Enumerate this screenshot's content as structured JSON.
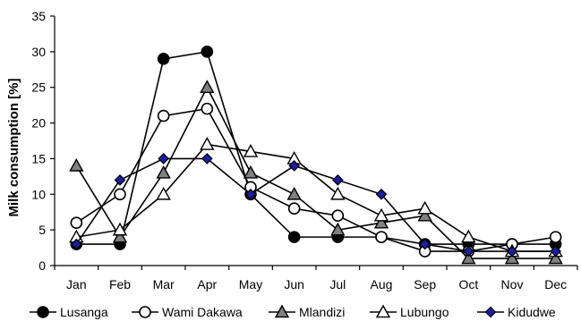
{
  "chart_data": {
    "type": "line",
    "title": "",
    "xlabel": "",
    "ylabel": "Milk consumption [%]",
    "ylim": [
      0,
      35
    ],
    "yticks": [
      0,
      5,
      10,
      15,
      20,
      25,
      30,
      35
    ],
    "categories": [
      "Jan",
      "Feb",
      "Mar",
      "Apr",
      "May",
      "Jun",
      "Jul",
      "Aug",
      "Sep",
      "Oct",
      "Nov",
      "Dec"
    ],
    "grid": false,
    "legend_position": "bottom",
    "series": [
      {
        "name": "Lusanga",
        "marker": "circle",
        "fill": "#000000",
        "values": [
          3,
          3,
          29,
          30,
          10,
          4,
          4,
          4,
          3,
          3,
          3,
          3
        ]
      },
      {
        "name": "Wami Dakawa",
        "marker": "circle",
        "fill": "#ffffff",
        "values": [
          6,
          10,
          21,
          22,
          11,
          8,
          7,
          4,
          2,
          2,
          3,
          4
        ]
      },
      {
        "name": "Mlandizi",
        "marker": "triangle",
        "fill": "#808080",
        "values": [
          14,
          4,
          13,
          25,
          13,
          10,
          5,
          6,
          7,
          1,
          1,
          1
        ]
      },
      {
        "name": "Lubungo",
        "marker": "triangle",
        "fill": "#ffffff",
        "values": [
          4,
          5,
          10,
          17,
          16,
          15,
          10,
          7,
          8,
          4,
          2,
          2
        ]
      },
      {
        "name": "Kidudwe",
        "marker": "diamond",
        "fill": "#1c1ca8",
        "values": [
          3,
          12,
          15,
          15,
          10,
          14,
          12,
          10,
          3,
          2,
          2,
          2
        ]
      }
    ]
  }
}
